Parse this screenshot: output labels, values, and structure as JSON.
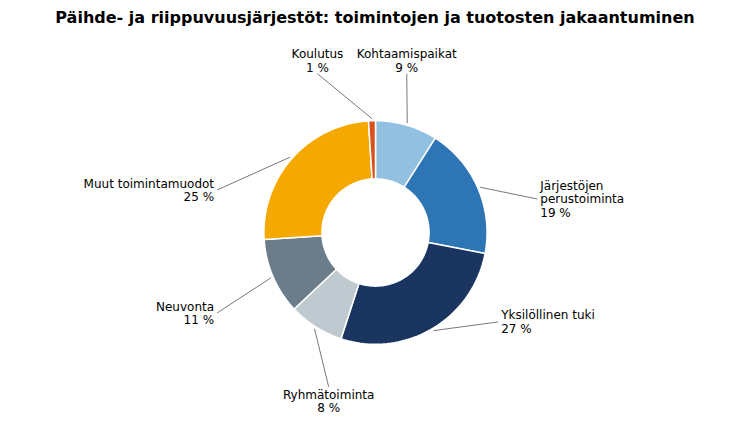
{
  "chart_data": {
    "type": "donut",
    "title": "Päihde- ja riippuvuusjärjestöt: toimintojen ja tuotosten jakaantuminen",
    "categories": [
      "Kohtaamispaikat\n9 %",
      "Järjestöjen\nperustoiminta\n19 %",
      "Yksilöllinen tuki\n27 %",
      "Ryhmätoiminta\n8 %",
      "Neuvonta\n11 %",
      "Muut toimintamuodot\n25 %",
      "Koulutus\n1 %"
    ],
    "values": [
      9,
      19,
      27,
      8,
      11,
      25,
      1
    ],
    "colors": [
      "#92c0e0",
      "#2e75b6",
      "#1a3660",
      "#bfc9d0",
      "#6b7d8a",
      "#f5a800",
      "#d94f1e"
    ]
  }
}
